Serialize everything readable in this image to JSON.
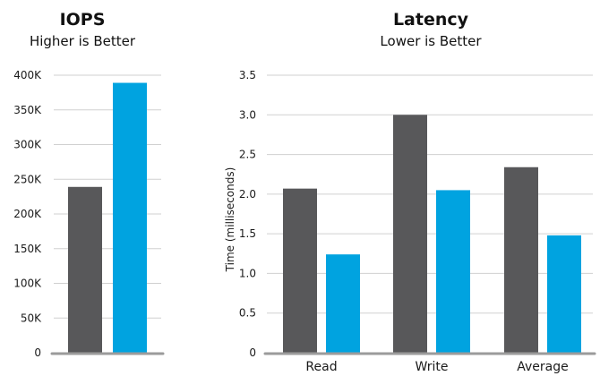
{
  "colors": {
    "series_a": "#58585a",
    "series_b": "#00a3e0",
    "grid": "#d0d0d0",
    "axis": "#9b9b9b"
  },
  "chart_data": [
    {
      "type": "bar",
      "title": "IOPS",
      "subtitle": "Higher is Better",
      "xlabel": "",
      "ylabel": "",
      "ylim": [
        0,
        400000
      ],
      "yticks": [
        "0",
        "50K",
        "100K",
        "150K",
        "200K",
        "250K",
        "300K",
        "350K",
        "400K"
      ],
      "ytick_values": [
        0,
        50000,
        100000,
        150000,
        200000,
        250000,
        300000,
        350000,
        400000
      ],
      "categories": [
        ""
      ],
      "series": [
        {
          "values": [
            239000
          ]
        },
        {
          "values": [
            389000
          ]
        }
      ],
      "grid": true,
      "legend": false
    },
    {
      "type": "bar",
      "title": "Latency",
      "subtitle": "Lower is Better",
      "xlabel": "",
      "ylabel": "Time (milliseconds)",
      "ylim": [
        0,
        3.5
      ],
      "yticks": [
        "0",
        "0.5",
        "1.0",
        "1.5",
        "2.0",
        "2.5",
        "3.0",
        "3.5"
      ],
      "ytick_values": [
        0,
        0.5,
        1.0,
        1.5,
        2.0,
        2.5,
        3.0,
        3.5
      ],
      "categories": [
        "Read",
        "Write",
        "Average"
      ],
      "series": [
        {
          "values": [
            2.07,
            3.0,
            2.34
          ]
        },
        {
          "values": [
            1.24,
            2.05,
            1.48
          ]
        }
      ],
      "grid": true,
      "legend": false
    }
  ]
}
